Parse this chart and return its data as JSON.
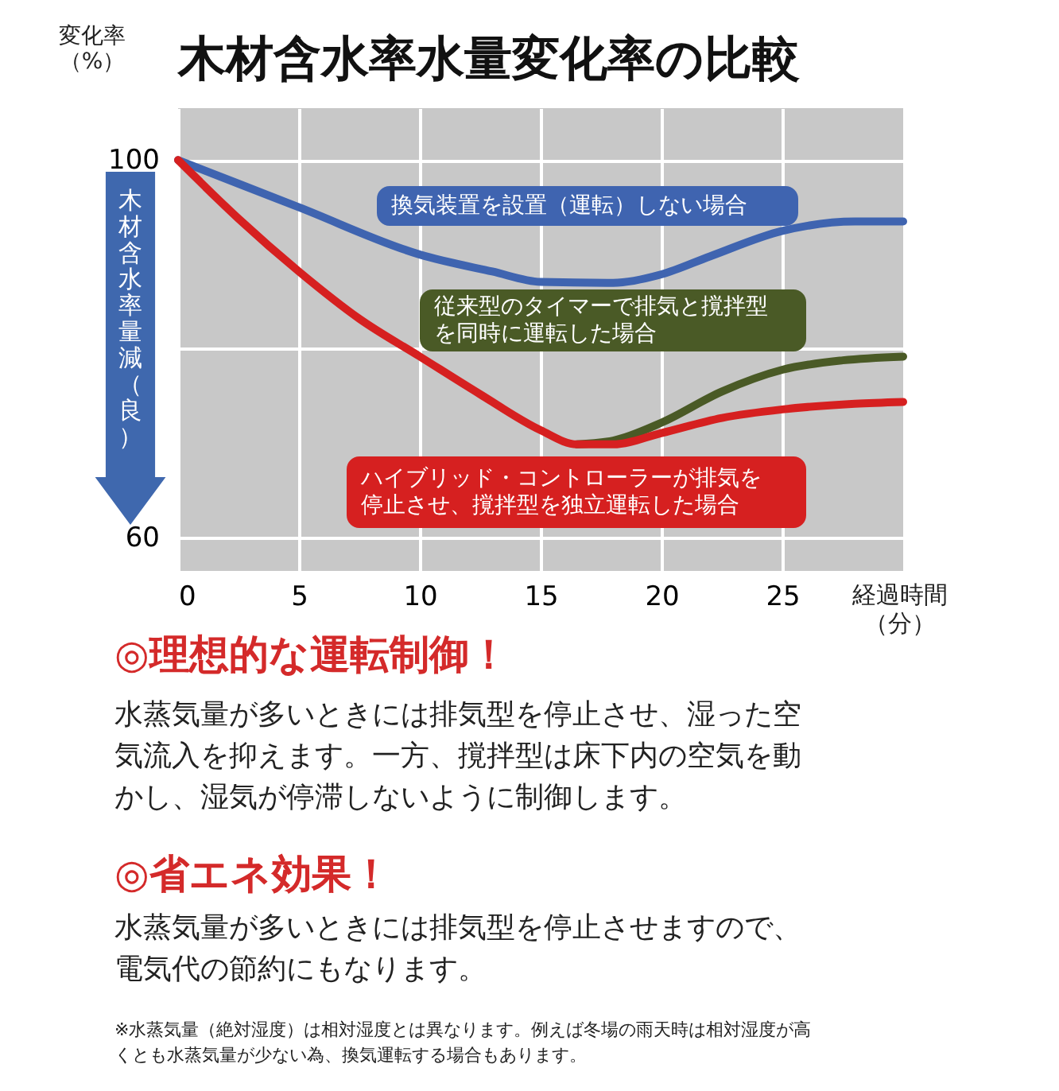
{
  "chart_data": {
    "type": "line",
    "title": "木材含水率水量変化率の比較",
    "ylabel": "変化率（%）",
    "xlabel": "経過時間（分）",
    "xlim": [
      0,
      30
    ],
    "xticks": [
      0,
      5,
      10,
      15,
      20,
      25
    ],
    "ylim": [
      56.5,
      105.5
    ],
    "yticks": [
      60,
      {
        "value": 80,
        "label": null
      },
      100
    ],
    "grid": true,
    "legend": false,
    "series": [
      {
        "name": "換気装置を設置（運転）しない場合",
        "color": "#3f64b0",
        "x": [
          0,
          5,
          10,
          13,
          15,
          18,
          20,
          22,
          25,
          28,
          30
        ],
        "values": [
          100,
          95,
          90,
          88.2,
          87.1,
          87,
          87.9,
          89.8,
          92.5,
          93.5,
          93.5
        ]
      },
      {
        "name": "従来型のタイマーで排気と撹拌型を同時に運転した場合",
        "color": "#4a5a26",
        "x": [
          16.5,
          18,
          20,
          22.5,
          25,
          27.5,
          30
        ],
        "values": [
          69.9,
          70.3,
          72.2,
          75.5,
          77.8,
          78.8,
          79.2
        ]
      },
      {
        "name": "ハイブリッド・コントローラーが排気を停止させ、撹拌型を独立運転した場合",
        "color": "#d62020",
        "x": [
          0,
          2.5,
          5,
          7.5,
          10,
          12.5,
          15,
          16.5,
          18,
          20,
          22.5,
          25,
          28,
          30
        ],
        "values": [
          100,
          93.8,
          88.2,
          83.2,
          79.2,
          75.2,
          71.4,
          69.9,
          69.9,
          71.1,
          72.7,
          73.6,
          74.2,
          74.4
        ]
      }
    ],
    "annotations": [
      "木材含水率量減（良）",
      "◎理想的な運転制御！",
      "水蒸気量が多いときには排気型を停止させ、湿った空気流入を抑えます。一方、撹拌型は床下内の空気を動かし、湿気が停滞しないように制御します。",
      "◎省エネ効果！",
      "水蒸気量が多いときには排気型を停止させますので、電気代の節約にもなります。",
      "※水蒸気量（絶対湿度）は相対湿度とは異なります。例えば冬場の雨天時は相対湿度が高くとも水蒸気量が少ない為、換気運転する場合もあります。"
    ]
  }
}
